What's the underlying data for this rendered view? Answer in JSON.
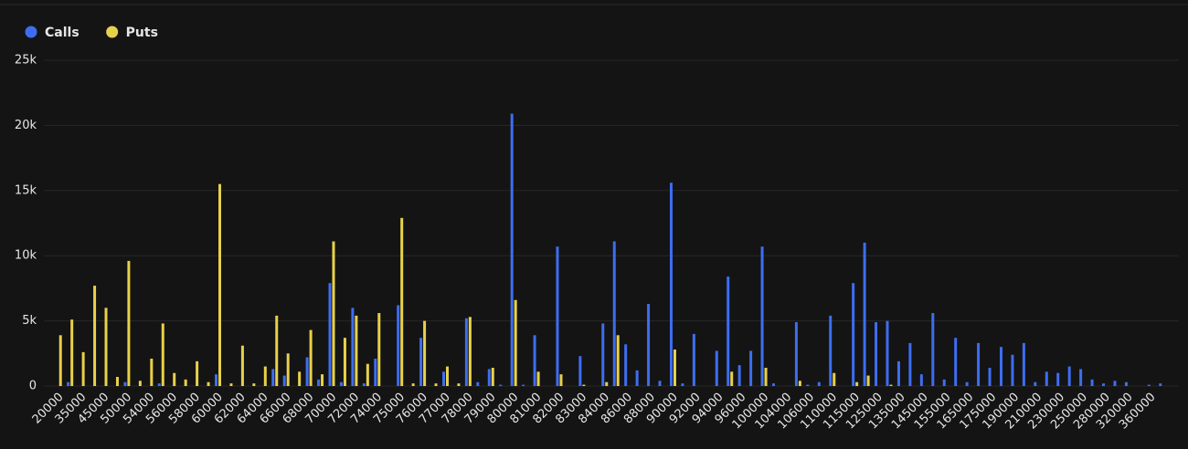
{
  "chart_data": {
    "type": "bar",
    "categories": [
      "20000",
      null,
      "35000",
      null,
      "45000",
      null,
      "50000",
      null,
      "54000",
      null,
      "56000",
      null,
      "58000",
      null,
      "60000",
      null,
      "62000",
      null,
      "64000",
      null,
      "66000",
      null,
      "68000",
      null,
      "70000",
      null,
      "72000",
      null,
      "74000",
      null,
      "75000",
      null,
      "76000",
      null,
      "77000",
      null,
      "78000",
      null,
      "79000",
      null,
      "80000",
      null,
      "81000",
      null,
      "82000",
      null,
      "83000",
      null,
      "84000",
      null,
      "86000",
      null,
      "88000",
      null,
      "90000",
      null,
      "92000",
      null,
      "94000",
      null,
      "96000",
      null,
      "100000",
      null,
      "104000",
      null,
      "106000",
      null,
      "110000",
      null,
      "115000",
      null,
      "125000",
      null,
      "135000",
      null,
      "145000",
      null,
      "155000",
      null,
      "165000",
      null,
      "175000",
      null,
      "190000",
      null,
      "210000",
      null,
      "230000",
      null,
      "250000",
      null,
      "280000",
      null,
      "320000",
      null,
      "360000",
      null
    ],
    "series": [
      {
        "name": "Calls",
        "color": "#3d6ef2",
        "values": [
          0,
          300,
          0,
          0,
          0,
          0,
          300,
          0,
          0,
          200,
          0,
          0,
          0,
          0,
          900,
          0,
          0,
          0,
          0,
          1300,
          800,
          0,
          2200,
          500,
          7900,
          300,
          6000,
          200,
          2100,
          0,
          6200,
          0,
          3700,
          0,
          1100,
          0,
          5200,
          300,
          1300,
          100,
          20900,
          100,
          3900,
          0,
          10700,
          0,
          2300,
          0,
          4800,
          11100,
          3200,
          1200,
          6300,
          400,
          15600,
          200,
          4000,
          0,
          2700,
          8400,
          1600,
          2700,
          10700,
          200,
          0,
          4900,
          100,
          300,
          5400,
          0,
          7900,
          11000,
          4900,
          5000,
          1900,
          3300,
          900,
          5600,
          500,
          3700,
          300,
          3300,
          1400,
          3000,
          2400,
          3300,
          300,
          1100,
          1000,
          1500,
          1300,
          500,
          200,
          400,
          300,
          0,
          100,
          200
        ]
      },
      {
        "name": "Puts",
        "color": "#e8d14a",
        "values": [
          3900,
          5100,
          2600,
          7700,
          6000,
          700,
          9600,
          400,
          2100,
          4800,
          1000,
          500,
          1900,
          300,
          15500,
          200,
          3100,
          200,
          1500,
          5400,
          2500,
          1100,
          4300,
          900,
          11100,
          3700,
          5400,
          1700,
          5600,
          0,
          12900,
          200,
          5000,
          200,
          1500,
          200,
          5300,
          0,
          1400,
          0,
          6600,
          0,
          1100,
          0,
          900,
          0,
          100,
          0,
          300,
          3900,
          0,
          0,
          0,
          0,
          2800,
          0,
          0,
          0,
          0,
          1100,
          0,
          0,
          1400,
          0,
          0,
          400,
          0,
          0,
          1000,
          0,
          300,
          800,
          0,
          100,
          0,
          0,
          0,
          0,
          0,
          0,
          0,
          0,
          0,
          0,
          0,
          0,
          0,
          0,
          0,
          0,
          0,
          0,
          0,
          0,
          0,
          0,
          0,
          0
        ]
      }
    ],
    "ylim": [
      0,
      25000
    ],
    "yticks": [
      0,
      {
        "value": 5000,
        "label": "5k"
      },
      {
        "value": 10000,
        "label": "10k"
      },
      {
        "value": 15000,
        "label": "15k"
      },
      {
        "value": 20000,
        "label": "20k"
      },
      {
        "value": 25000,
        "label": "25k"
      }
    ],
    "grid": true
  }
}
